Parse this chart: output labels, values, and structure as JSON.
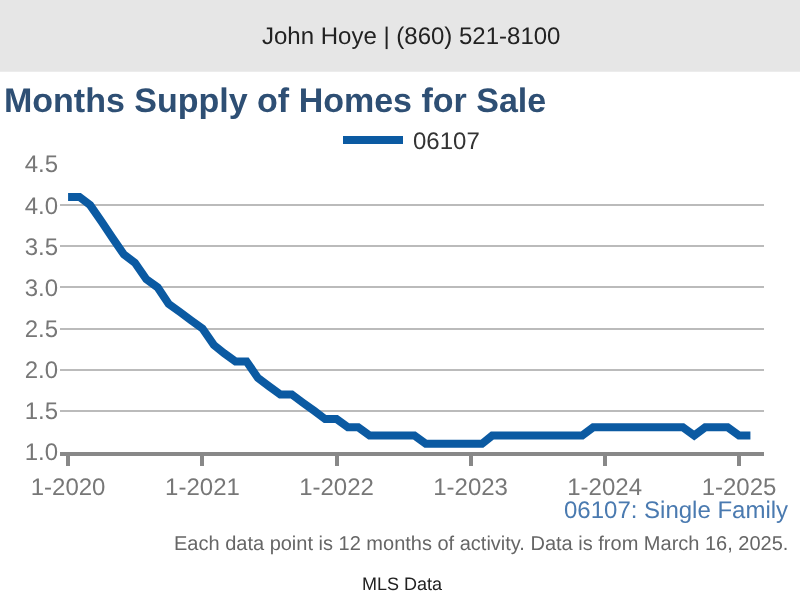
{
  "chart_data": {
    "type": "line",
    "title": "Months Supply of Homes for Sale",
    "annotations": [
      "John Hoye | (860) 521-8100",
      "06107: Single Family",
      "Each data point is 12 months of activity. Data is from March 16, 2025.",
      "MLS Data"
    ],
    "x": [
      "2020-01",
      "2020-02",
      "2020-03",
      "2020-04",
      "2020-05",
      "2020-06",
      "2020-07",
      "2020-08",
      "2020-09",
      "2020-10",
      "2020-11",
      "2020-12",
      "2021-01",
      "2021-02",
      "2021-03",
      "2021-04",
      "2021-05",
      "2021-06",
      "2021-07",
      "2021-08",
      "2021-09",
      "2021-10",
      "2021-11",
      "2021-12",
      "2022-01",
      "2022-02",
      "2022-03",
      "2022-04",
      "2022-05",
      "2022-06",
      "2022-07",
      "2022-08",
      "2022-09",
      "2022-10",
      "2022-11",
      "2022-12",
      "2023-01",
      "2023-02",
      "2023-03",
      "2023-04",
      "2023-05",
      "2023-06",
      "2023-07",
      "2023-08",
      "2023-09",
      "2023-10",
      "2023-11",
      "2023-12",
      "2024-01",
      "2024-02",
      "2024-03",
      "2024-04",
      "2024-05",
      "2024-06",
      "2024-07",
      "2024-08",
      "2024-09",
      "2024-10",
      "2024-11",
      "2024-12",
      "2025-01",
      "2025-02"
    ],
    "series": [
      {
        "name": "06107",
        "color": "#0b5aa2",
        "values": [
          4.1,
          4.1,
          4.0,
          3.8,
          3.6,
          3.4,
          3.3,
          3.1,
          3.0,
          2.8,
          2.7,
          2.6,
          2.5,
          2.3,
          2.2,
          2.1,
          2.1,
          1.9,
          1.8,
          1.7,
          1.7,
          1.6,
          1.5,
          1.4,
          1.4,
          1.3,
          1.3,
          1.2,
          1.2,
          1.2,
          1.2,
          1.2,
          1.1,
          1.1,
          1.1,
          1.1,
          1.1,
          1.1,
          1.2,
          1.2,
          1.2,
          1.2,
          1.2,
          1.2,
          1.2,
          1.2,
          1.2,
          1.3,
          1.3,
          1.3,
          1.3,
          1.3,
          1.3,
          1.3,
          1.3,
          1.3,
          1.2,
          1.3,
          1.3,
          1.3,
          1.2,
          1.2
        ]
      }
    ],
    "xlim": [
      "2019-12-10",
      "2025-03-10"
    ],
    "xticks": [
      {
        "value": "2020-01",
        "label": "1-2020"
      },
      {
        "value": "2021-01",
        "label": "1-2021"
      },
      {
        "value": "2022-01",
        "label": "1-2022"
      },
      {
        "value": "2023-01",
        "label": "1-2023"
      },
      {
        "value": "2024-01",
        "label": "1-2024"
      },
      {
        "value": "2025-01",
        "label": "1-2025"
      }
    ],
    "ylim": [
      1.0,
      4.5
    ],
    "yticks": [
      {
        "value": 1,
        "label": "1.0"
      },
      {
        "value": 1.5,
        "label": "1.5"
      },
      {
        "value": 2,
        "label": "2.0"
      },
      {
        "value": 2.5,
        "label": "2.5"
      },
      {
        "value": 3,
        "label": "3.0"
      },
      {
        "value": 3.5,
        "label": "3.5"
      },
      {
        "value": 4,
        "label": "4.0"
      },
      {
        "value": 4.5,
        "label": "4.5"
      }
    ],
    "grid": "y",
    "legend": "top",
    "marker": "none",
    "line_style": "solid"
  }
}
